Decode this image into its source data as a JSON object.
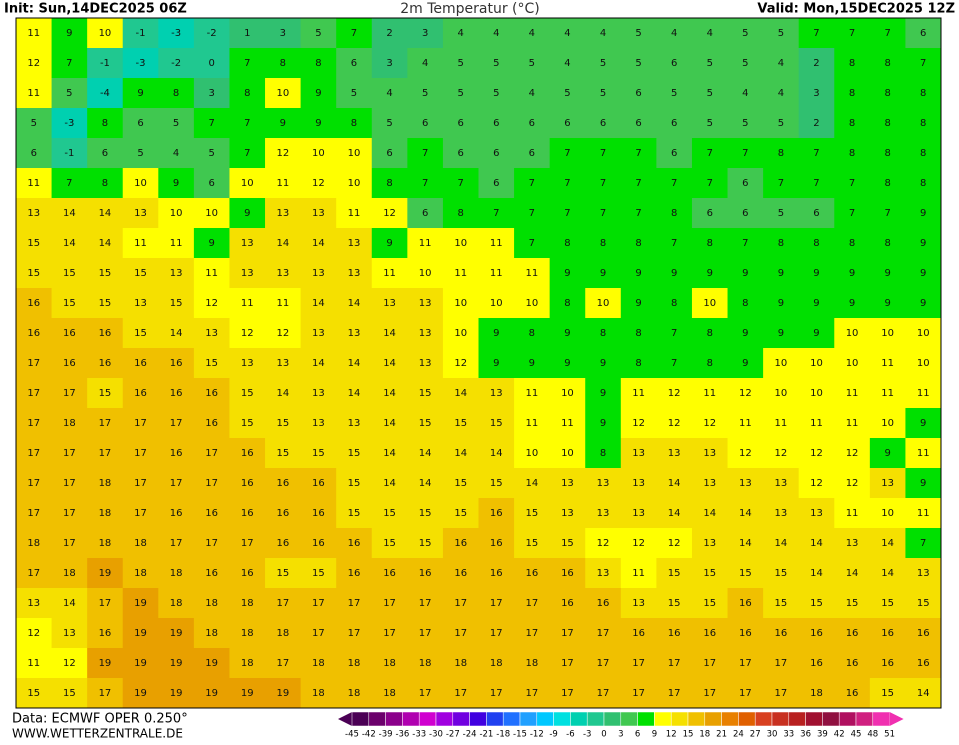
{
  "header": {
    "init": "Init: Sun,14DEC2025 06Z",
    "title": "2m Temperatur (°C)",
    "valid": "Valid: Mon,15DEC2025 12Z"
  },
  "footer": {
    "data": "Data: ECMWF OPER 0.250°",
    "site": "WWW.WETTERZENTRALE.DE"
  },
  "legend": {
    "labels": [
      -45,
      -42,
      -39,
      -36,
      -33,
      -30,
      -27,
      -24,
      -21,
      -18,
      -15,
      -12,
      -9,
      -6,
      -3,
      0,
      3,
      6,
      9,
      12,
      15,
      18,
      21,
      24,
      27,
      30,
      33,
      36,
      39,
      42,
      45,
      48,
      51
    ],
    "colors": [
      "#4b0055",
      "#6b006b",
      "#8b008b",
      "#b000b0",
      "#d000d0",
      "#a000e0",
      "#7000e0",
      "#4000e0",
      "#2040f0",
      "#2070ff",
      "#20a0ff",
      "#00c8ff",
      "#00e0e0",
      "#00d0b0",
      "#20c890",
      "#30c070",
      "#40c850",
      "#00e000",
      "#ffff00",
      "#f5e000",
      "#f0c000",
      "#e8a000",
      "#e88000",
      "#e06000",
      "#d84020",
      "#c83020",
      "#b82020",
      "#a01030",
      "#901040",
      "#b01060",
      "#d02080",
      "#f030b0"
    ]
  },
  "grid": {
    "rows": [
      [
        11,
        9,
        10,
        -1,
        -3,
        -2,
        1,
        3,
        5,
        7,
        2,
        3,
        4,
        4,
        4,
        4,
        4,
        5,
        4,
        4,
        5,
        5,
        7,
        7,
        7,
        6
      ],
      [
        12,
        7,
        -1,
        -3,
        -2,
        0,
        7,
        8,
        8,
        6,
        3,
        4,
        5,
        5,
        5,
        4,
        5,
        5,
        6,
        5,
        5,
        4,
        2,
        8,
        8,
        7
      ],
      [
        11,
        5,
        -4,
        9,
        8,
        3,
        8,
        10,
        9,
        5,
        4,
        5,
        5,
        5,
        4,
        5,
        5,
        6,
        5,
        5,
        4,
        4,
        3,
        8,
        8,
        8
      ],
      [
        5,
        -3,
        8,
        6,
        5,
        7,
        7,
        9,
        9,
        8,
        5,
        6,
        6,
        6,
        6,
        6,
        6,
        6,
        6,
        5,
        5,
        5,
        2,
        8,
        8,
        8
      ],
      [
        6,
        -1,
        6,
        5,
        4,
        5,
        7,
        12,
        10,
        10,
        6,
        7,
        6,
        6,
        6,
        7,
        7,
        7,
        6,
        7,
        7,
        8,
        7,
        8,
        8,
        8
      ],
      [
        11,
        7,
        8,
        10,
        9,
        6,
        10,
        11,
        12,
        10,
        8,
        7,
        7,
        6,
        7,
        7,
        7,
        7,
        7,
        7,
        6,
        7,
        7,
        7,
        8,
        8
      ],
      [
        13,
        14,
        14,
        13,
        10,
        10,
        9,
        13,
        13,
        11,
        12,
        6,
        8,
        7,
        7,
        7,
        7,
        7,
        8,
        6,
        6,
        5,
        6,
        7,
        7,
        9
      ],
      [
        15,
        14,
        14,
        11,
        11,
        9,
        13,
        14,
        14,
        13,
        9,
        11,
        10,
        11,
        7,
        8,
        8,
        8,
        7,
        8,
        7,
        8,
        8,
        8,
        8,
        9
      ],
      [
        15,
        15,
        15,
        15,
        13,
        11,
        13,
        13,
        13,
        13,
        11,
        10,
        11,
        11,
        11,
        9,
        9,
        9,
        9,
        9,
        9,
        9,
        9,
        9,
        9,
        9
      ],
      [
        16,
        15,
        15,
        13,
        15,
        12,
        11,
        11,
        14,
        14,
        13,
        13,
        10,
        10,
        10,
        8,
        10,
        9,
        8,
        10,
        8,
        9,
        9,
        9,
        9,
        9
      ],
      [
        16,
        16,
        16,
        15,
        14,
        13,
        12,
        12,
        13,
        13,
        14,
        13,
        10,
        9,
        8,
        9,
        8,
        8,
        7,
        8,
        9,
        9,
        9,
        10,
        10,
        10
      ],
      [
        17,
        16,
        16,
        16,
        16,
        15,
        13,
        13,
        14,
        14,
        14,
        13,
        12,
        9,
        9,
        9,
        9,
        8,
        7,
        8,
        9,
        10,
        10,
        10,
        11,
        10
      ],
      [
        17,
        17,
        15,
        16,
        16,
        16,
        15,
        14,
        13,
        14,
        14,
        15,
        14,
        13,
        11,
        10,
        9,
        11,
        12,
        11,
        12,
        10,
        10,
        11,
        11,
        11
      ],
      [
        17,
        18,
        17,
        17,
        17,
        16,
        15,
        15,
        13,
        13,
        14,
        15,
        15,
        15,
        11,
        11,
        9,
        12,
        12,
        12,
        11,
        11,
        11,
        11,
        10,
        9
      ],
      [
        17,
        17,
        17,
        17,
        16,
        17,
        16,
        15,
        15,
        15,
        14,
        14,
        14,
        14,
        10,
        10,
        8,
        13,
        13,
        13,
        12,
        12,
        12,
        12,
        9,
        11
      ],
      [
        17,
        17,
        18,
        17,
        17,
        17,
        16,
        16,
        16,
        15,
        14,
        14,
        15,
        15,
        14,
        13,
        13,
        13,
        14,
        13,
        13,
        13,
        12,
        12,
        13,
        9
      ],
      [
        17,
        17,
        18,
        17,
        16,
        16,
        16,
        16,
        16,
        15,
        15,
        15,
        15,
        16,
        15,
        13,
        13,
        13,
        14,
        14,
        14,
        13,
        13,
        11,
        10,
        11
      ],
      [
        18,
        17,
        18,
        18,
        17,
        17,
        17,
        16,
        16,
        16,
        15,
        15,
        16,
        16,
        15,
        15,
        12,
        12,
        12,
        13,
        14,
        14,
        14,
        13,
        14,
        7
      ],
      [
        17,
        18,
        19,
        18,
        18,
        16,
        16,
        15,
        15,
        16,
        16,
        16,
        16,
        16,
        16,
        16,
        13,
        11,
        15,
        15,
        15,
        15,
        14,
        14,
        14,
        13
      ],
      [
        13,
        14,
        17,
        19,
        18,
        18,
        18,
        17,
        17,
        17,
        17,
        17,
        17,
        17,
        17,
        16,
        16,
        13,
        15,
        15,
        16,
        15,
        15,
        15,
        15,
        15
      ],
      [
        12,
        13,
        16,
        19,
        19,
        18,
        18,
        18,
        17,
        17,
        17,
        17,
        17,
        17,
        17,
        17,
        17,
        16,
        16,
        16,
        16,
        16,
        16,
        16,
        16,
        16
      ],
      [
        11,
        12,
        19,
        19,
        19,
        19,
        18,
        17,
        18,
        18,
        18,
        18,
        18,
        18,
        18,
        17,
        17,
        17,
        17,
        17,
        17,
        17,
        16,
        16,
        16,
        16
      ],
      [
        15,
        15,
        17,
        19,
        19,
        19,
        19,
        19,
        18,
        18,
        18,
        17,
        17,
        17,
        17,
        17,
        17,
        17,
        17,
        17,
        17,
        17,
        18,
        16,
        15,
        14
      ]
    ]
  }
}
